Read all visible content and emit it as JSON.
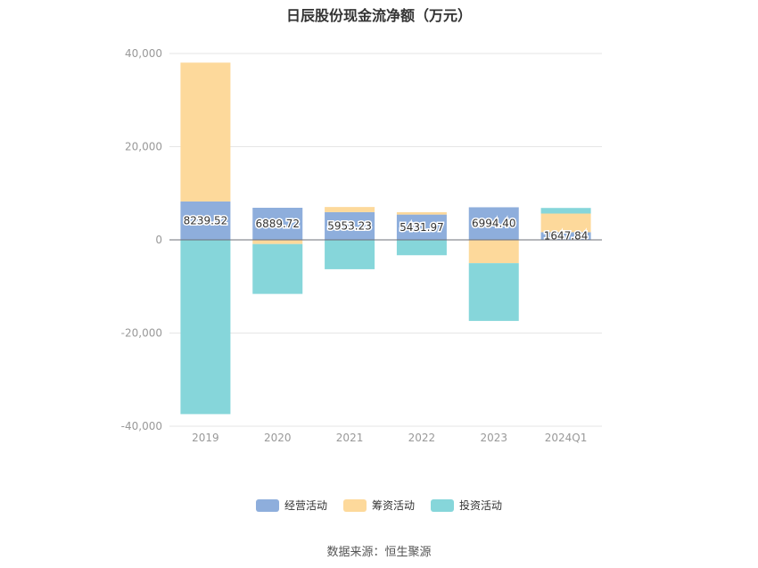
{
  "chart_data": {
    "type": "bar",
    "stacked": true,
    "title": "日辰股份现金流净额（万元）",
    "xlabel": "",
    "ylabel": "",
    "categories": [
      "2019",
      "2020",
      "2021",
      "2022",
      "2023",
      "2024Q1"
    ],
    "ylim": [
      -40000,
      40000
    ],
    "yticks": [
      40000,
      20000,
      0,
      -20000,
      -40000
    ],
    "ytick_labels": [
      "40,000",
      "20,000",
      "0",
      "-20,000",
      "-40,000"
    ],
    "grid": true,
    "legend_position": "bottom",
    "series": [
      {
        "name": "经营活动",
        "color": "#8eaedc",
        "values": [
          8239.52,
          6889.72,
          5953.23,
          5431.97,
          6994.4,
          1647.84
        ],
        "labels": [
          "8239.52",
          "6889.72",
          "5953.23",
          "5431.97",
          "6994.40",
          "1647.84"
        ]
      },
      {
        "name": "筹资活动",
        "color": "#fdd99b",
        "values": [
          29800,
          -900,
          1100,
          500,
          -5000,
          4000
        ]
      },
      {
        "name": "投资活动",
        "color": "#86d6da",
        "values": [
          -37400,
          -10700,
          -6300,
          -3300,
          -12400,
          1200
        ]
      }
    ]
  },
  "source": "数据来源：恒生聚源"
}
